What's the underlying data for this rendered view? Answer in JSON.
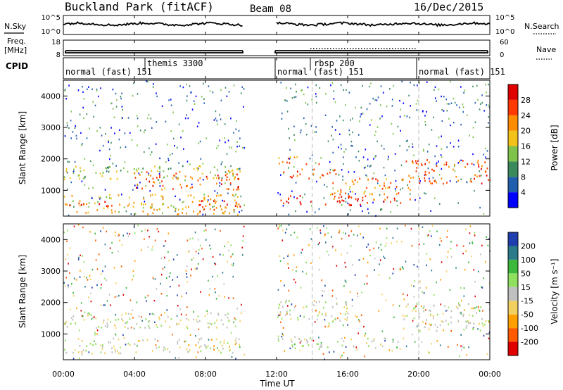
{
  "header": {
    "title": "Buckland Park (fitACF)",
    "beam": "Beam 08",
    "date": "16/Dec/2015"
  },
  "left_labels": {
    "nsky": "N.Sky",
    "freq_line1": "Freq.",
    "freq_line2": "[MHz]",
    "cpid": "CPID"
  },
  "right_labels": {
    "nsearch": "N.Search",
    "nave": "Nave"
  },
  "noise_panel": {
    "left_ticks": [
      "10^5",
      "10^0"
    ],
    "right_ticks": [
      "10^5",
      "10^0"
    ]
  },
  "freq_panel": {
    "left_ticks": [
      "18",
      "8"
    ],
    "right_ticks": [
      "60",
      "0"
    ]
  },
  "cpid_segments": [
    {
      "label": "normal (fast) 151",
      "start_h": 0.0
    },
    {
      "label": "themis 3300",
      "start_h": 4.9
    },
    {
      "label": "normal (fast) 151",
      "start_h": 12.0
    },
    {
      "label": "rbsp 200",
      "start_h": 14.0
    },
    {
      "label": "normal (fast) 151",
      "start_h": 20.0
    }
  ],
  "power_panel": {
    "ylabel": "Slant Range [km]",
    "yticks": [
      "1000",
      "2000",
      "3000",
      "4000"
    ],
    "colorbar_label": "Power [dB]",
    "colorbar_ticks": [
      "4",
      "8",
      "12",
      "16",
      "20",
      "24",
      "28"
    ],
    "colors": [
      "#0000ff",
      "#1f5fae",
      "#3b8a5c",
      "#7fc34a",
      "#f2c21a",
      "#ff8c00",
      "#ff3a00",
      "#e00000"
    ]
  },
  "velocity_panel": {
    "ylabel": "Slant Range [km]",
    "yticks": [
      "1000",
      "2000",
      "3000",
      "4000"
    ],
    "colorbar_label": "Velocity [m s⁻¹]",
    "colorbar_ticks": [
      "-200",
      "-100",
      "-50",
      "-15",
      "15",
      "50",
      "100",
      "200"
    ],
    "colors": [
      "#e00000",
      "#ff5a00",
      "#ffa000",
      "#f2d060",
      "#c0c0c0",
      "#90e060",
      "#3cb83c",
      "#2a7a8a",
      "#1f3fae"
    ]
  },
  "xaxis": {
    "label": "Time UT",
    "ticks": [
      "00:00",
      "04:00",
      "08:00",
      "12:00",
      "16:00",
      "20:00",
      "00:00"
    ]
  },
  "chart_data": {
    "type": "heatmap",
    "x_range_hours": [
      0,
      24
    ],
    "y_range_km": [
      180,
      4500
    ],
    "data_gap_hours": [
      10.2,
      12.0
    ],
    "power_bands": [
      {
        "t0": 0.0,
        "t1": 10.0,
        "r0": 1350,
        "r1": 1800,
        "level": 3.4
      },
      {
        "t0": 0.0,
        "t1": 3.0,
        "r0": 520,
        "r1": 700,
        "level": 6.5
      },
      {
        "t0": 7.5,
        "t1": 10.0,
        "r0": 350,
        "r1": 700,
        "level": 6.8
      },
      {
        "t0": 0.0,
        "t1": 10.0,
        "r0": 250,
        "r1": 900,
        "level": 4.3
      },
      {
        "t0": 4.0,
        "t1": 10.0,
        "r0": 1050,
        "r1": 1650,
        "level": 5.5
      },
      {
        "t0": 12.0,
        "t1": 19.0,
        "r0": 550,
        "r1": 850,
        "level": 6.7
      },
      {
        "t0": 12.0,
        "t1": 15.5,
        "r0": 1400,
        "r1": 1700,
        "level": 5.7
      },
      {
        "t0": 12.0,
        "t1": 14.5,
        "r0": 1850,
        "r1": 2100,
        "level": 5.0
      },
      {
        "t0": 19.0,
        "t1": 24.0,
        "r0": 1200,
        "r1": 2000,
        "level": 5.9
      },
      {
        "t0": 15.0,
        "t1": 19.5,
        "r0": 700,
        "r1": 1400,
        "level": 5.2
      }
    ],
    "velocity_bands": [
      {
        "t0": 0.0,
        "t1": 10.0,
        "r0": 1200,
        "r1": 1700,
        "level": 4
      },
      {
        "t0": 0.0,
        "t1": 10.0,
        "r0": 400,
        "r1": 900,
        "level": 3.6
      },
      {
        "t0": 12.0,
        "t1": 19.0,
        "r0": 550,
        "r1": 900,
        "level": 4.4
      },
      {
        "t0": 12.0,
        "t1": 16.0,
        "r0": 1400,
        "r1": 2100,
        "level": 4.1
      },
      {
        "t0": 19.0,
        "t1": 24.0,
        "r0": 1100,
        "r1": 2000,
        "level": 4
      }
    ]
  }
}
